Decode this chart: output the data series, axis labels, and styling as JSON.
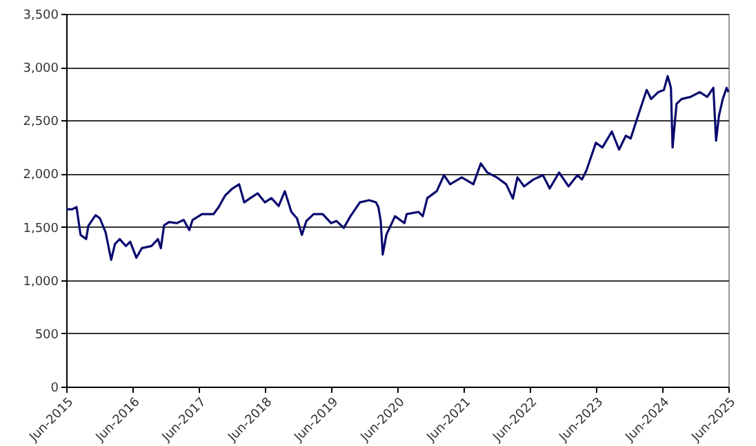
{
  "chart_data": {
    "type": "line",
    "x": [
      "2015-06-01",
      "2015-07-04",
      "2015-07-28",
      "2015-08-19",
      "2015-09-19",
      "2015-10-01",
      "2015-11-10",
      "2015-12-04",
      "2016-01-04",
      "2016-02-04",
      "2016-02-25",
      "2016-03-22",
      "2016-04-25",
      "2016-05-19",
      "2016-06-22",
      "2016-07-22",
      "2016-09-13",
      "2016-10-19",
      "2016-11-04",
      "2016-11-22",
      "2016-12-19",
      "2017-02-01",
      "2017-03-10",
      "2017-04-10",
      "2017-04-28",
      "2017-06-19",
      "2017-08-22",
      "2017-09-19",
      "2017-10-25",
      "2017-12-04",
      "2018-01-10",
      "2018-02-07",
      "2018-03-13",
      "2018-04-22",
      "2018-06-01",
      "2018-07-07",
      "2018-08-16",
      "2018-09-19",
      "2018-10-25",
      "2018-11-25",
      "2018-12-22",
      "2019-01-16",
      "2019-02-25",
      "2019-04-16",
      "2019-06-01",
      "2019-07-01",
      "2019-08-10",
      "2019-09-16",
      "2019-11-07",
      "2019-12-28",
      "2020-02-04",
      "2020-02-17",
      "2020-03-01",
      "2020-03-12",
      "2020-04-01",
      "2020-05-19",
      "2020-07-10",
      "2020-07-22",
      "2020-09-25",
      "2020-10-19",
      "2020-11-13",
      "2021-01-04",
      "2021-02-13",
      "2021-03-19",
      "2021-05-22",
      "2021-07-25",
      "2021-09-04",
      "2021-10-10",
      "2021-12-01",
      "2022-01-22",
      "2022-02-28",
      "2022-03-25",
      "2022-05-01",
      "2022-06-22",
      "2022-08-13",
      "2022-09-19",
      "2022-11-10",
      "2023-01-01",
      "2023-02-19",
      "2023-03-16",
      "2023-04-10",
      "2023-06-01",
      "2023-07-07",
      "2023-08-28",
      "2023-10-07",
      "2023-11-13",
      "2023-12-10",
      "2024-01-16",
      "2024-03-07",
      "2024-04-01",
      "2024-05-10",
      "2024-06-10",
      "2024-07-01",
      "2024-07-19",
      "2024-07-28",
      "2024-08-19",
      "2024-09-16",
      "2024-11-04",
      "2024-12-25",
      "2025-02-04",
      "2025-03-10",
      "2025-03-25",
      "2025-04-10",
      "2025-05-01",
      "2025-05-22",
      "2025-06-01"
    ],
    "series": [
      {
        "color": "#0a0a6e",
        "values": [
          1665,
          1665,
          1685,
          1425,
          1385,
          1510,
          1610,
          1580,
          1450,
          1190,
          1340,
          1385,
          1320,
          1360,
          1210,
          1300,
          1320,
          1385,
          1300,
          1515,
          1545,
          1535,
          1565,
          1470,
          1565,
          1620,
          1620,
          1685,
          1795,
          1860,
          1900,
          1730,
          1770,
          1815,
          1730,
          1770,
          1695,
          1835,
          1640,
          1580,
          1425,
          1555,
          1620,
          1620,
          1535,
          1555,
          1490,
          1600,
          1730,
          1750,
          1730,
          1685,
          1555,
          1240,
          1425,
          1600,
          1535,
          1620,
          1640,
          1600,
          1770,
          1835,
          1985,
          1900,
          1965,
          1900,
          2095,
          2010,
          1965,
          1900,
          1765,
          1965,
          1880,
          1945,
          1985,
          1860,
          2010,
          1880,
          1985,
          1945,
          2030,
          2290,
          2245,
          2395,
          2225,
          2355,
          2330,
          2525,
          2785,
          2700,
          2765,
          2785,
          2915,
          2805,
          2245,
          2655,
          2700,
          2720,
          2765,
          2720,
          2805,
          2310,
          2545,
          2700,
          2805,
          2765
        ]
      }
    ],
    "xlim": [
      "2015-06-01",
      "2025-06-01"
    ],
    "xticks": [
      {
        "value": "2015-06-01",
        "label": "Jun-2015"
      },
      {
        "value": "2016-06-01",
        "label": "Jun-2016"
      },
      {
        "value": "2017-06-01",
        "label": "Jun-2017"
      },
      {
        "value": "2018-06-01",
        "label": "Jun-2018"
      },
      {
        "value": "2019-06-01",
        "label": "Jun-2019"
      },
      {
        "value": "2020-06-01",
        "label": "Jun-2020"
      },
      {
        "value": "2021-06-01",
        "label": "Jun-2021"
      },
      {
        "value": "2022-06-01",
        "label": "Jun-2022"
      },
      {
        "value": "2023-06-01",
        "label": "Jun-2023"
      },
      {
        "value": "2024-06-01",
        "label": "Jun-2024"
      },
      {
        "value": "2025-06-01",
        "label": "Jun-2025"
      }
    ],
    "ylim": [
      0,
      3500
    ],
    "yticks": [
      0,
      500,
      {
        "value": 1000,
        "label": "1,000"
      },
      {
        "value": 1500,
        "label": "1,500"
      },
      {
        "value": 2000,
        "label": "2,000"
      },
      {
        "value": 2500,
        "label": "2,500"
      },
      {
        "value": 3000,
        "label": "3,000"
      },
      {
        "value": 3500,
        "label": "3,500"
      }
    ],
    "grid": "y"
  }
}
